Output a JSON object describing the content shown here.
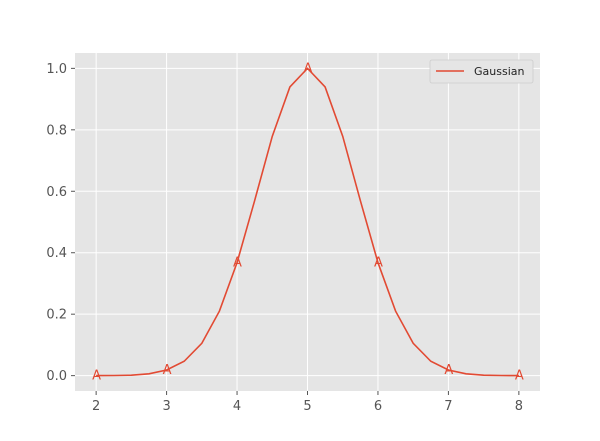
{
  "chart_data": {
    "type": "line",
    "title": "",
    "xlabel": "",
    "ylabel": "",
    "xlim": [
      1.7,
      8.3
    ],
    "ylim": [
      -0.05,
      1.05
    ],
    "grid": true,
    "legend_position": "top-right",
    "x_ticks": [
      "2",
      "3",
      "4",
      "5",
      "6",
      "7",
      "8"
    ],
    "y_ticks": [
      "0.0",
      "0.2",
      "0.4",
      "0.6",
      "0.8",
      "1.0"
    ],
    "series": [
      {
        "name": "Gaussian",
        "color": "#E24A33",
        "x": [
          2.0,
          2.25,
          2.5,
          2.75,
          3.0,
          3.25,
          3.5,
          3.75,
          4.0,
          4.25,
          4.5,
          4.75,
          5.0,
          5.25,
          5.5,
          5.75,
          6.0,
          6.25,
          6.5,
          6.75,
          7.0,
          7.25,
          7.5,
          7.75,
          8.0
        ],
        "y": [
          0.0001,
          0.0004,
          0.0015,
          0.0059,
          0.0183,
          0.0468,
          0.1054,
          0.2101,
          0.3679,
          0.5698,
          0.7788,
          0.9394,
          1.0,
          0.9394,
          0.7788,
          0.5698,
          0.3679,
          0.2101,
          0.1054,
          0.0468,
          0.0183,
          0.0059,
          0.0015,
          0.0004,
          0.0001
        ]
      }
    ],
    "markers": [
      {
        "x": 2,
        "y": 0.0001,
        "label": "A"
      },
      {
        "x": 3,
        "y": 0.0183,
        "label": "A"
      },
      {
        "x": 4,
        "y": 0.3679,
        "label": "A"
      },
      {
        "x": 5,
        "y": 1.0,
        "label": "A"
      },
      {
        "x": 6,
        "y": 0.3679,
        "label": "A"
      },
      {
        "x": 7,
        "y": 0.0183,
        "label": "A"
      },
      {
        "x": 8,
        "y": 0.0001,
        "label": "A"
      }
    ],
    "colors": {
      "background": "#E5E5E5",
      "grid": "#FFFFFF",
      "line": "#E24A33"
    }
  }
}
